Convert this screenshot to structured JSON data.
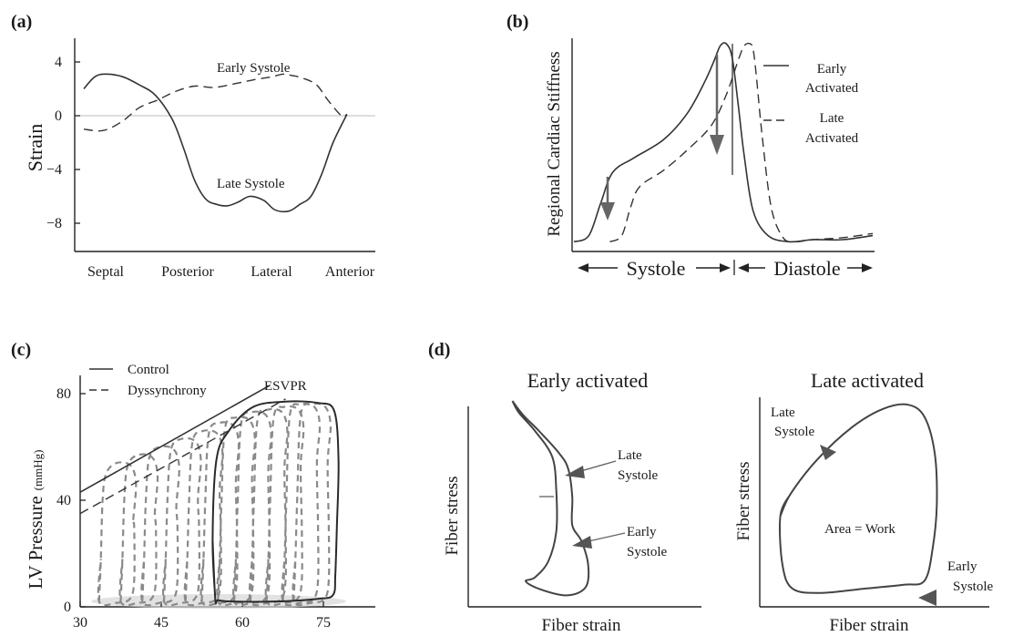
{
  "chart_data": [
    {
      "panel_label": "(a)",
      "type": "line",
      "ylabel": "Strain",
      "categories": [
        "Septal",
        "Posterior",
        "Lateral",
        "Anterior"
      ],
      "yticks": [
        4,
        0,
        -4,
        -8
      ],
      "ylim": [
        -10,
        5.5
      ],
      "x_range": [
        0,
        1
      ],
      "series": [
        {
          "name": "Early Systole",
          "style": "dashed",
          "x": [
            0.0,
            0.07,
            0.14,
            0.2,
            0.27,
            0.33,
            0.4,
            0.47,
            0.55,
            0.62,
            0.68,
            0.72,
            0.75,
            0.79,
            0.84,
            0.88,
            0.93,
            0.95
          ],
          "y": [
            -1.0,
            -1.1,
            -0.4,
            0.6,
            1.2,
            1.8,
            2.2,
            2.1,
            2.4,
            2.7,
            2.9,
            3.1,
            3.0,
            2.8,
            2.3,
            1.2,
            0.0,
            0.1
          ]
        },
        {
          "name": "Late Systole",
          "style": "solid",
          "x": [
            0.0,
            0.04,
            0.08,
            0.14,
            0.2,
            0.26,
            0.32,
            0.36,
            0.4,
            0.44,
            0.48,
            0.52,
            0.56,
            0.6,
            0.65,
            0.69,
            0.74,
            0.78,
            0.82,
            0.86,
            0.9,
            0.95
          ],
          "y": [
            2.0,
            2.9,
            3.1,
            2.9,
            2.3,
            1.5,
            -0.3,
            -2.4,
            -4.8,
            -6.2,
            -6.6,
            -6.7,
            -6.4,
            -6.0,
            -6.3,
            -7.0,
            -7.1,
            -6.6,
            -6.0,
            -4.3,
            -2.0,
            0.1
          ]
        }
      ]
    },
    {
      "panel_label": "(b)",
      "type": "line",
      "ylabel": "Regional Cardiac Stiffness",
      "phase_labels": [
        "Systole",
        "Diastole"
      ],
      "legend": [
        "Early Activated",
        "Late Activated"
      ],
      "legend_position": "top-right",
      "x_range": [
        0,
        1
      ],
      "y_range": [
        0,
        1
      ],
      "series": [
        {
          "name": "Early Activated",
          "style": "solid",
          "x": [
            0.0,
            0.05,
            0.09,
            0.13,
            0.2,
            0.3,
            0.38,
            0.44,
            0.47,
            0.49,
            0.51,
            0.53,
            0.55,
            0.57,
            0.6,
            0.65,
            0.72,
            0.8,
            0.9,
            1.0
          ],
          "y": [
            0.03,
            0.06,
            0.22,
            0.37,
            0.44,
            0.53,
            0.66,
            0.82,
            0.92,
            0.99,
            1.0,
            0.93,
            0.7,
            0.45,
            0.18,
            0.06,
            0.03,
            0.04,
            0.04,
            0.06
          ]
        },
        {
          "name": "Late Activated",
          "style": "dashed",
          "x": [
            0.12,
            0.16,
            0.19,
            0.22,
            0.3,
            0.38,
            0.46,
            0.51,
            0.55,
            0.57,
            0.59,
            0.6,
            0.61,
            0.63,
            0.66,
            0.7,
            0.74,
            0.8,
            0.9,
            1.0
          ],
          "y": [
            0.03,
            0.06,
            0.2,
            0.3,
            0.38,
            0.48,
            0.6,
            0.75,
            0.92,
            0.99,
            1.0,
            0.97,
            0.85,
            0.55,
            0.2,
            0.05,
            0.03,
            0.04,
            0.05,
            0.07
          ]
        }
      ]
    },
    {
      "panel_label": "(c)",
      "type": "line",
      "ylabel": "LV Pressure",
      "ylabel_unit": "(mmHg)",
      "xticks": [
        30,
        45,
        60,
        75
      ],
      "yticks": [
        0,
        40,
        80
      ],
      "xlim": [
        30,
        84
      ],
      "ylim": [
        0,
        85
      ],
      "legend": [
        "Control",
        "Dyssynchrony"
      ],
      "legend_position": "top-left",
      "annotation": "ESVPR",
      "esvpr_lines": [
        {
          "name": "Control",
          "style": "solid",
          "x": [
            30,
            65
          ],
          "y": [
            43,
            83
          ]
        },
        {
          "name": "Dyssynchrony",
          "style": "dashed",
          "x": [
            30,
            68
          ],
          "y": [
            35,
            78
          ]
        }
      ],
      "control_loop": {
        "x": [
          55.0,
          54.5,
          55.2,
          57.5,
          62.0,
          68.0,
          74.0,
          77.0,
          77.8,
          77.5,
          77.2,
          76.8,
          74.0,
          66.0,
          58.0,
          55.5,
          55.0
        ],
        "y": [
          3.0,
          25.0,
          55.0,
          66.0,
          75.0,
          77.0,
          76.5,
          73.5,
          55.0,
          30.0,
          12.0,
          4.5,
          3.0,
          2.0,
          2.0,
          2.5,
          3.0
        ]
      },
      "dyssynchrony_loops": [
        {
          "edv": 40,
          "peak": 54
        },
        {
          "edv": 44,
          "peak": 57
        },
        {
          "edv": 48,
          "peak": 60
        },
        {
          "edv": 52,
          "peak": 63
        },
        {
          "edv": 56,
          "peak": 66
        },
        {
          "edv": 59,
          "peak": 69
        },
        {
          "edv": 62,
          "peak": 71
        },
        {
          "edv": 65,
          "peak": 73
        },
        {
          "edv": 68,
          "peak": 74
        },
        {
          "edv": 71,
          "peak": 75
        },
        {
          "edv": 74,
          "peak": 76
        },
        {
          "edv": 76,
          "peak": 76
        }
      ]
    },
    {
      "panel_label": "(d)",
      "type": "line",
      "subplots": [
        {
          "title": "Early activated",
          "xlabel": "Fiber strain",
          "ylabel": "Fiber stress",
          "annotations": [
            "Late Systole",
            "Early Systole"
          ],
          "x_range": [
            0,
            1
          ],
          "y_range": [
            0,
            1
          ],
          "loop": {
            "x": [
              0.25,
              0.33,
              0.45,
              0.6,
              0.67,
              0.7,
              0.7,
              0.77,
              0.82,
              0.8,
              0.66,
              0.46,
              0.35,
              0.42,
              0.52,
              0.58,
              0.58,
              0.55,
              0.42,
              0.3,
              0.25
            ],
            "y": [
              1.0,
              0.93,
              0.85,
              0.74,
              0.66,
              0.52,
              0.38,
              0.3,
              0.18,
              0.07,
              0.03,
              0.06,
              0.1,
              0.12,
              0.2,
              0.35,
              0.55,
              0.72,
              0.85,
              0.94,
              1.0
            ]
          }
        },
        {
          "title": "Late activated",
          "xlabel": "Fiber strain",
          "ylabel": "Fiber stress",
          "annotations": [
            "Late Systole",
            "Area = Work",
            "Early Systole"
          ],
          "x_range": [
            0,
            1
          ],
          "y_range": [
            0,
            1
          ],
          "loop": {
            "x": [
              0.1,
              0.15,
              0.28,
              0.45,
              0.6,
              0.72,
              0.8,
              0.85,
              0.86,
              0.84,
              0.8,
              0.7,
              0.5,
              0.3,
              0.16,
              0.11,
              0.1
            ],
            "y": [
              0.44,
              0.55,
              0.72,
              0.88,
              0.97,
              0.99,
              0.93,
              0.75,
              0.5,
              0.28,
              0.12,
              0.1,
              0.08,
              0.06,
              0.08,
              0.2,
              0.44
            ]
          }
        }
      ]
    }
  ]
}
